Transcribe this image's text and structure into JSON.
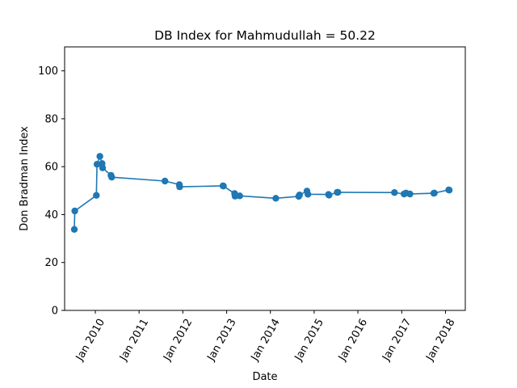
{
  "chart_data": {
    "type": "line",
    "title": "DB Index for Mahmudullah = 50.22",
    "xlabel": "Date",
    "ylabel": "Don Bradman Index",
    "xlim": [
      "2009-04-20",
      "2018-06-15"
    ],
    "ylim": [
      0,
      110
    ],
    "x_ticks": [
      {
        "date": "2010-01-01",
        "label": "Jan 2010"
      },
      {
        "date": "2011-01-01",
        "label": "Jan 2011"
      },
      {
        "date": "2012-01-01",
        "label": "Jan 2012"
      },
      {
        "date": "2013-01-01",
        "label": "Jan 2013"
      },
      {
        "date": "2014-01-01",
        "label": "Jan 2014"
      },
      {
        "date": "2015-01-01",
        "label": "Jan 2015"
      },
      {
        "date": "2016-01-01",
        "label": "Jan 2016"
      },
      {
        "date": "2017-01-01",
        "label": "Jan 2017"
      },
      {
        "date": "2018-01-01",
        "label": "Jan 2018"
      }
    ],
    "y_ticks": [
      {
        "value": 0,
        "label": "0"
      },
      {
        "value": 20,
        "label": "20"
      },
      {
        "value": 40,
        "label": "40"
      },
      {
        "value": 60,
        "label": "60"
      },
      {
        "value": 80,
        "label": "80"
      },
      {
        "value": 100,
        "label": "100"
      }
    ],
    "grid": false,
    "color": "#1f77b4",
    "marker": "circle",
    "series": [
      {
        "x": [
          "2009-07-10",
          "2009-07-14",
          "2010-01-10",
          "2010-01-15",
          "2010-02-08",
          "2010-02-27",
          "2010-03-03",
          "2010-05-12",
          "2010-05-18",
          "2011-08-05",
          "2011-12-03",
          "2011-12-06",
          "2012-12-01",
          "2012-12-05",
          "2013-03-08",
          "2013-03-12",
          "2013-04-20",
          "2014-02-15",
          "2014-08-25",
          "2014-09-01",
          "2014-11-02",
          "2014-11-10",
          "2015-05-01",
          "2015-05-05",
          "2015-07-12",
          "2015-07-18",
          "2016-11-01",
          "2017-01-20",
          "2017-02-05",
          "2017-03-10",
          "2017-09-25",
          "2017-09-30",
          "2018-01-28",
          "2018-02-01"
        ],
        "y": [
          33.8,
          41.5,
          48.0,
          61.0,
          64.3,
          61.3,
          59.5,
          56.4,
          55.6,
          54.0,
          52.5,
          51.6,
          52.0,
          51.9,
          48.8,
          47.7,
          47.8,
          46.8,
          47.6,
          48.2,
          49.8,
          48.5,
          48.4,
          48.1,
          49.3,
          49.3,
          49.2,
          48.6,
          49.0,
          48.6,
          48.9,
          49.0,
          50.3,
          50.2
        ]
      }
    ]
  }
}
